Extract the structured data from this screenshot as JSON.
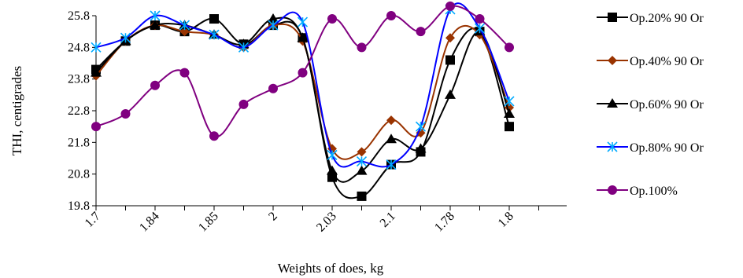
{
  "chart_data": {
    "type": "line",
    "xlabel": "Weights of does, kg",
    "ylabel": "THI, centigrades",
    "ylim": [
      19.8,
      25.8
    ],
    "yticks": [
      "25.8",
      "24.8",
      "23.8",
      "22.8",
      "21.8",
      "20.8",
      "19.8"
    ],
    "xtick_labels": [
      "1.7",
      "1.84",
      "1.85",
      "2",
      "2.03",
      "2.1",
      "1.78",
      "1.8"
    ],
    "point_count": 16,
    "tick_every": 2,
    "grid": false,
    "legend": "right",
    "series": [
      {
        "name": "Op.20% 90 Or",
        "color": "#000000",
        "marker": "square",
        "values": [
          24.1,
          25.0,
          25.5,
          25.3,
          25.7,
          24.9,
          25.5,
          25.1,
          20.7,
          20.1,
          21.1,
          21.5,
          24.4,
          25.3,
          22.3,
          null
        ]
      },
      {
        "name": "Op.40% 90 Or",
        "color": "#993300",
        "marker": "diamond",
        "values": [
          23.9,
          25.0,
          25.5,
          25.3,
          25.2,
          24.8,
          25.5,
          25.0,
          21.6,
          21.5,
          22.5,
          22.1,
          25.1,
          25.2,
          22.9,
          null
        ]
      },
      {
        "name": "Op.60% 90 Or",
        "color": "#000000",
        "marker": "triangle",
        "values": [
          24.0,
          25.0,
          25.5,
          25.5,
          25.2,
          24.9,
          25.7,
          25.1,
          20.9,
          20.9,
          21.9,
          21.6,
          23.3,
          25.3,
          22.7,
          null
        ]
      },
      {
        "name": "Op.80% 90 Or",
        "color": "#0000ff",
        "marker": "star",
        "values": [
          24.8,
          25.1,
          25.8,
          25.5,
          25.2,
          24.8,
          25.5,
          25.6,
          21.4,
          21.2,
          21.1,
          22.3,
          26.0,
          25.4,
          23.1,
          null
        ]
      },
      {
        "name": "Op.100%",
        "color": "#800080",
        "marker": "circle",
        "values": [
          22.3,
          22.7,
          23.6,
          24.0,
          22.0,
          23.0,
          23.5,
          24.0,
          25.7,
          24.8,
          25.8,
          25.3,
          26.1,
          25.7,
          24.8,
          null
        ]
      }
    ]
  }
}
